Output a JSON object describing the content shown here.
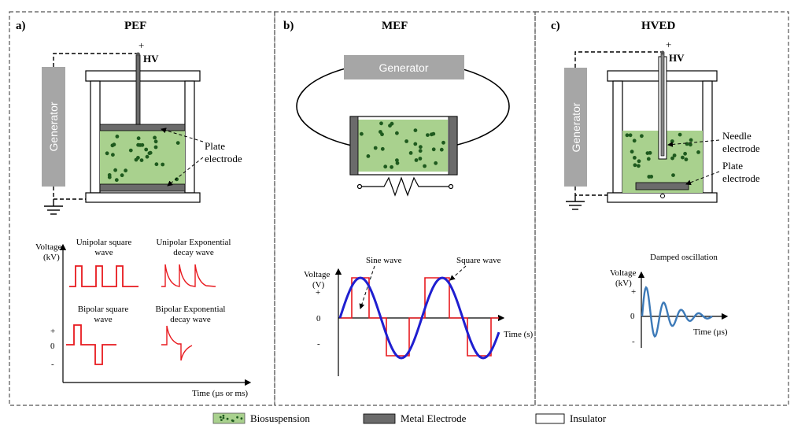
{
  "panels": {
    "a": {
      "letter": "a)",
      "title": "PEF",
      "plus": "+",
      "hv": "HV",
      "generator": "Generator",
      "plate_label_1": "Plate",
      "plate_label_2": "electrode"
    },
    "b": {
      "letter": "b)",
      "title": "MEF",
      "generator": "Generator"
    },
    "c": {
      "letter": "c)",
      "title": "HVED",
      "plus": "+",
      "hv": "HV",
      "generator": "Generator",
      "needle_label_1": "Needle",
      "needle_label_2": "electrode",
      "plate_label_1": "Plate",
      "plate_label_2": "electrode"
    }
  },
  "waveforms": {
    "pef": {
      "ylabel_1": "Voltage",
      "ylabel_2": "(kV)",
      "unipolar_square_1": "Unipolar square",
      "unipolar_square_2": "wave",
      "unipolar_exp_1": "Unipolar Exponential",
      "unipolar_exp_2": "decay wave",
      "bipolar_square_1": "Bipolar square",
      "bipolar_square_2": "wave",
      "bipolar_exp_1": "Bipolar Exponential",
      "bipolar_exp_2": "decay wave",
      "tick_plus": "+",
      "tick_zero": "0",
      "tick_minus": "-",
      "xlabel": "Time (µs or ms)"
    },
    "mef": {
      "ylabel_1": "Voltage",
      "ylabel_2": "(V)",
      "sine_label": "Sine wave",
      "square_label": "Square wave",
      "tick_plus": "+",
      "tick_zero": "0",
      "tick_minus": "-",
      "xlabel": "Time (s)",
      "colors": {
        "sine": "#1f1fd0",
        "square": "#e8191e"
      }
    },
    "hved": {
      "ylabel_1": "Voltage",
      "ylabel_2": "(kV)",
      "title": "Damped oscillation",
      "tick_plus": "+",
      "tick_zero": "0",
      "tick_minus": "-",
      "xlabel": "Time (µs)",
      "colors": {
        "wave": "#3d7ab8"
      }
    }
  },
  "legend": {
    "biosuspension": "Biosuspension",
    "metal_electrode": "Metal Electrode",
    "insulator": "Insulator"
  },
  "colors": {
    "biosuspension": "#a9d18e",
    "particle": "#1e5a1e",
    "electrode": "#6b6b6b",
    "generator": "#a6a6a6",
    "pulse": "#e8191e"
  }
}
